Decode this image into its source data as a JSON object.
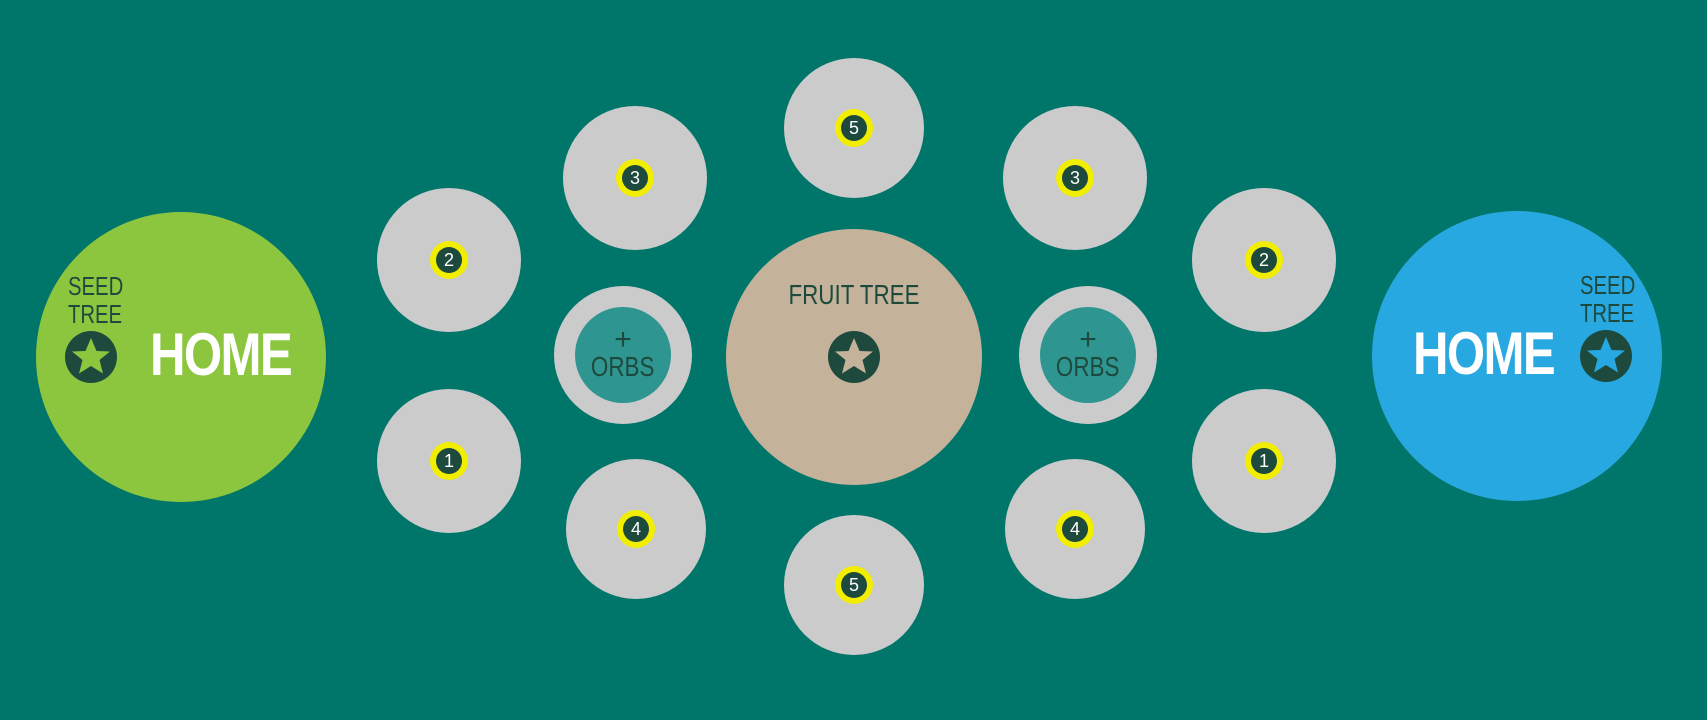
{
  "colors": {
    "background": "#00756a",
    "node": "#cbcbcb",
    "badge_ring": "#f2ee00",
    "badge_fill": "#1e4a3d",
    "home_left": "#8cc63e",
    "home_right": "#28a8e1",
    "fruit_tree": "#c4b29a",
    "orbs_inner": "#2e9591",
    "dark_text": "#1e4a3d"
  },
  "left_home": {
    "label": "HOME",
    "seed_line1": "SEED",
    "seed_line2": "TREE",
    "icon": "star-icon"
  },
  "right_home": {
    "label": "HOME",
    "seed_line1": "SEED",
    "seed_line2": "TREE",
    "icon": "star-icon"
  },
  "fruit_tree": {
    "label": "FRUIT TREE",
    "icon": "star-icon"
  },
  "left_orbs": {
    "plus": "+",
    "label": "ORBS"
  },
  "right_orbs": {
    "plus": "+",
    "label": "ORBS"
  },
  "nodes": {
    "left_1": "1",
    "left_2": "2",
    "left_3": "3",
    "left_4": "4",
    "top_5": "5",
    "bottom_5": "5",
    "right_1": "1",
    "right_2": "2",
    "right_3": "3",
    "right_4": "4"
  }
}
